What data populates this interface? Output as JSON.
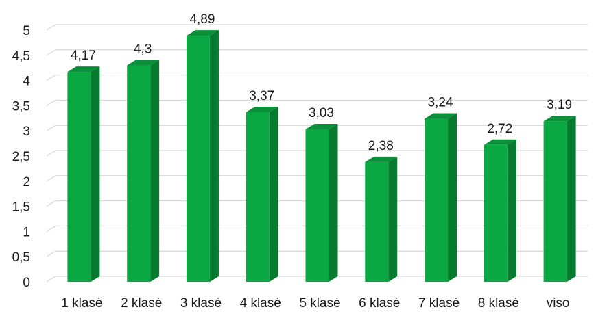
{
  "chart_data": {
    "type": "bar",
    "categories": [
      "1 klasė",
      "2 klasė",
      "3 klasė",
      "4 klasė",
      "5 klasė",
      "6 klasė",
      "7 klasė",
      "8 klasė",
      "viso"
    ],
    "values": [
      4.17,
      4.3,
      4.89,
      3.37,
      3.03,
      2.38,
      3.24,
      2.72,
      3.19
    ],
    "data_labels": [
      "4,17",
      "4,3",
      "4,89",
      "3,37",
      "3,03",
      "2,38",
      "3,24",
      "2,72",
      "3,19"
    ],
    "y_ticks": [
      0,
      0.5,
      1,
      1.5,
      2,
      2.5,
      3,
      3.5,
      4,
      4.5,
      5
    ],
    "y_tick_labels": [
      "0",
      "0,5",
      "1",
      "1,5",
      "2",
      "2,5",
      "3",
      "3,5",
      "4",
      "4,5",
      "5"
    ],
    "ylim": [
      0,
      5
    ],
    "title": "",
    "xlabel": "",
    "ylabel": "",
    "grid": true,
    "legend": "none",
    "style": "3d-column",
    "colors": {
      "bar_front": "#0aa843",
      "bar_side": "#067a2f",
      "bar_top": "#0c8f39",
      "grid": "#d9d9d9",
      "floor": "#d9d9d9"
    }
  }
}
